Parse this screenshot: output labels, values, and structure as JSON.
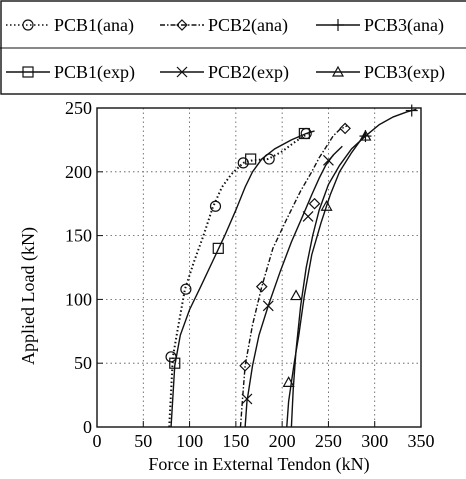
{
  "chart_data": {
    "type": "line",
    "title": "",
    "xlabel": "Force in External Tendon (kN)",
    "ylabel": "Applied Load (kN)",
    "xlim": [
      0,
      350
    ],
    "ylim": [
      0,
      250
    ],
    "xticks": [
      0,
      50,
      100,
      150,
      200,
      250,
      300,
      350
    ],
    "yticks": [
      0,
      50,
      100,
      150,
      200,
      250
    ],
    "grid": true,
    "legend_position": "top",
    "series": [
      {
        "name": "PCB1(ana)",
        "line": "dotted",
        "marker": "circle",
        "x": [
          78,
          82,
          88,
          95,
          105,
          115,
          125,
          135,
          145,
          158,
          168,
          185,
          200,
          215,
          228
        ],
        "y": [
          0,
          55,
          80,
          108,
          130,
          150,
          172,
          188,
          198,
          207,
          209,
          210,
          216,
          224,
          230
        ],
        "marker_x": [
          80,
          96,
          128,
          158,
          186,
          226
        ],
        "marker_y": [
          55,
          108,
          173,
          207,
          210,
          230
        ]
      },
      {
        "name": "PCB2(ana)",
        "line": "dashdot",
        "marker": "diamond",
        "x": [
          155,
          157,
          160,
          168,
          178,
          190,
          205,
          220,
          232,
          240,
          248,
          255,
          262,
          270
        ],
        "y": [
          0,
          20,
          48,
          80,
          110,
          140,
          163,
          185,
          200,
          211,
          220,
          228,
          233,
          236
        ],
        "marker_x": [
          160,
          178,
          235,
          268
        ],
        "marker_y": [
          48,
          110,
          175,
          234
        ]
      },
      {
        "name": "PCB3(ana)",
        "line": "solid",
        "marker": "plus",
        "x": [
          210,
          212,
          215,
          220,
          226,
          233,
          240,
          250,
          262,
          275,
          290,
          305,
          320,
          335,
          345
        ],
        "y": [
          0,
          30,
          60,
          95,
          125,
          150,
          170,
          190,
          205,
          218,
          228,
          237,
          243,
          247,
          249
        ],
        "marker_x": [
          290,
          340
        ],
        "marker_y": [
          228,
          248
        ]
      },
      {
        "name": "PCB1(exp)",
        "line": "solid",
        "marker": "square",
        "x": [
          80,
          84,
          90,
          100,
          112,
          125,
          138,
          150,
          160,
          168,
          178,
          192,
          210,
          226,
          235
        ],
        "y": [
          0,
          48,
          72,
          92,
          110,
          130,
          150,
          170,
          188,
          200,
          210,
          218,
          225,
          230,
          232
        ],
        "marker_x": [
          84,
          131,
          166,
          224
        ],
        "marker_y": [
          50,
          140,
          210,
          230
        ]
      },
      {
        "name": "PCB2(exp)",
        "line": "solid",
        "marker": "cross",
        "x": [
          160,
          162,
          168,
          175,
          185,
          198,
          210,
          222,
          232,
          240,
          247,
          255,
          265
        ],
        "y": [
          0,
          20,
          48,
          72,
          95,
          122,
          145,
          165,
          182,
          195,
          205,
          213,
          220
        ],
        "marker_x": [
          162,
          185,
          228,
          250
        ],
        "marker_y": [
          22,
          95,
          165,
          209
        ]
      },
      {
        "name": "PCB3(exp)",
        "line": "solid",
        "marker": "triangle",
        "x": [
          205,
          207,
          210,
          213,
          218,
          224,
          232,
          242,
          252,
          262,
          275,
          290
        ],
        "y": [
          0,
          20,
          35,
          50,
          72,
          103,
          135,
          160,
          182,
          200,
          215,
          230
        ],
        "marker_x": [
          207,
          215,
          248,
          290
        ],
        "marker_y": [
          35,
          103,
          173,
          228
        ]
      }
    ]
  }
}
